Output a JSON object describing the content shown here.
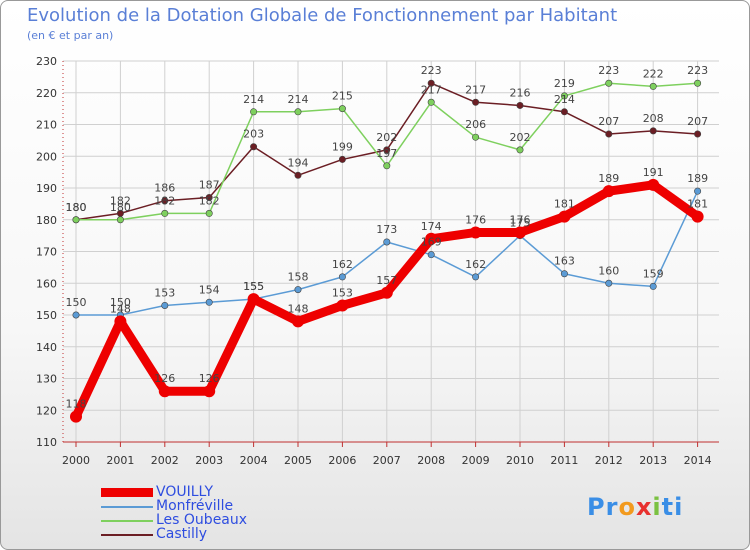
{
  "header": {
    "title": "Evolution de la Dotation Globale de Fonctionnement par Habitant",
    "subtitle": "(en € et par an)"
  },
  "chart_data": {
    "type": "line",
    "title": "Evolution de la Dotation Globale de Fonctionnement par Habitant",
    "subtitle": "(en € et par an)",
    "xlabel": "",
    "ylabel": "",
    "x": [
      "2000",
      "2001",
      "2002",
      "2003",
      "2004",
      "2005",
      "2006",
      "2007",
      "2008",
      "2009",
      "2010",
      "2011",
      "2012",
      "2013",
      "2014"
    ],
    "ylim": [
      110,
      230
    ],
    "yticks": [
      110,
      120,
      130,
      140,
      150,
      160,
      170,
      180,
      190,
      200,
      210,
      220,
      230
    ],
    "grid": true,
    "series": [
      {
        "name": "VOUILLY",
        "color": "#ee0000",
        "values": [
          118,
          148,
          126,
          126,
          155,
          148,
          153,
          157,
          174,
          176,
          176,
          181,
          189,
          191,
          181
        ]
      },
      {
        "name": "Monfréville",
        "color": "#5b9bd5",
        "values": [
          150,
          150,
          153,
          154,
          155,
          158,
          162,
          173,
          169,
          162,
          175,
          163,
          160,
          159,
          189
        ]
      },
      {
        "name": "Les Oubeaux",
        "color": "#7ed05e",
        "values": [
          180,
          180,
          182,
          182,
          214,
          214,
          215,
          197,
          217,
          206,
          202,
          219,
          223,
          222,
          223
        ]
      },
      {
        "name": "Castilly",
        "color": "#6b1e24",
        "values": [
          180,
          182,
          186,
          187,
          203,
          194,
          199,
          202,
          223,
          217,
          216,
          214,
          207,
          208,
          207
        ]
      }
    ]
  },
  "legend": {
    "items": [
      {
        "label": "VOUILLY",
        "color": "#ee0000"
      },
      {
        "label": "Monfréville",
        "color": "#5b9bd5"
      },
      {
        "label": "Les Oubeaux",
        "color": "#7ed05e"
      },
      {
        "label": "Castilly",
        "color": "#6b1e24"
      }
    ]
  },
  "logo": {
    "parts": [
      "Pr",
      "o",
      "x",
      "i",
      "ti"
    ]
  }
}
